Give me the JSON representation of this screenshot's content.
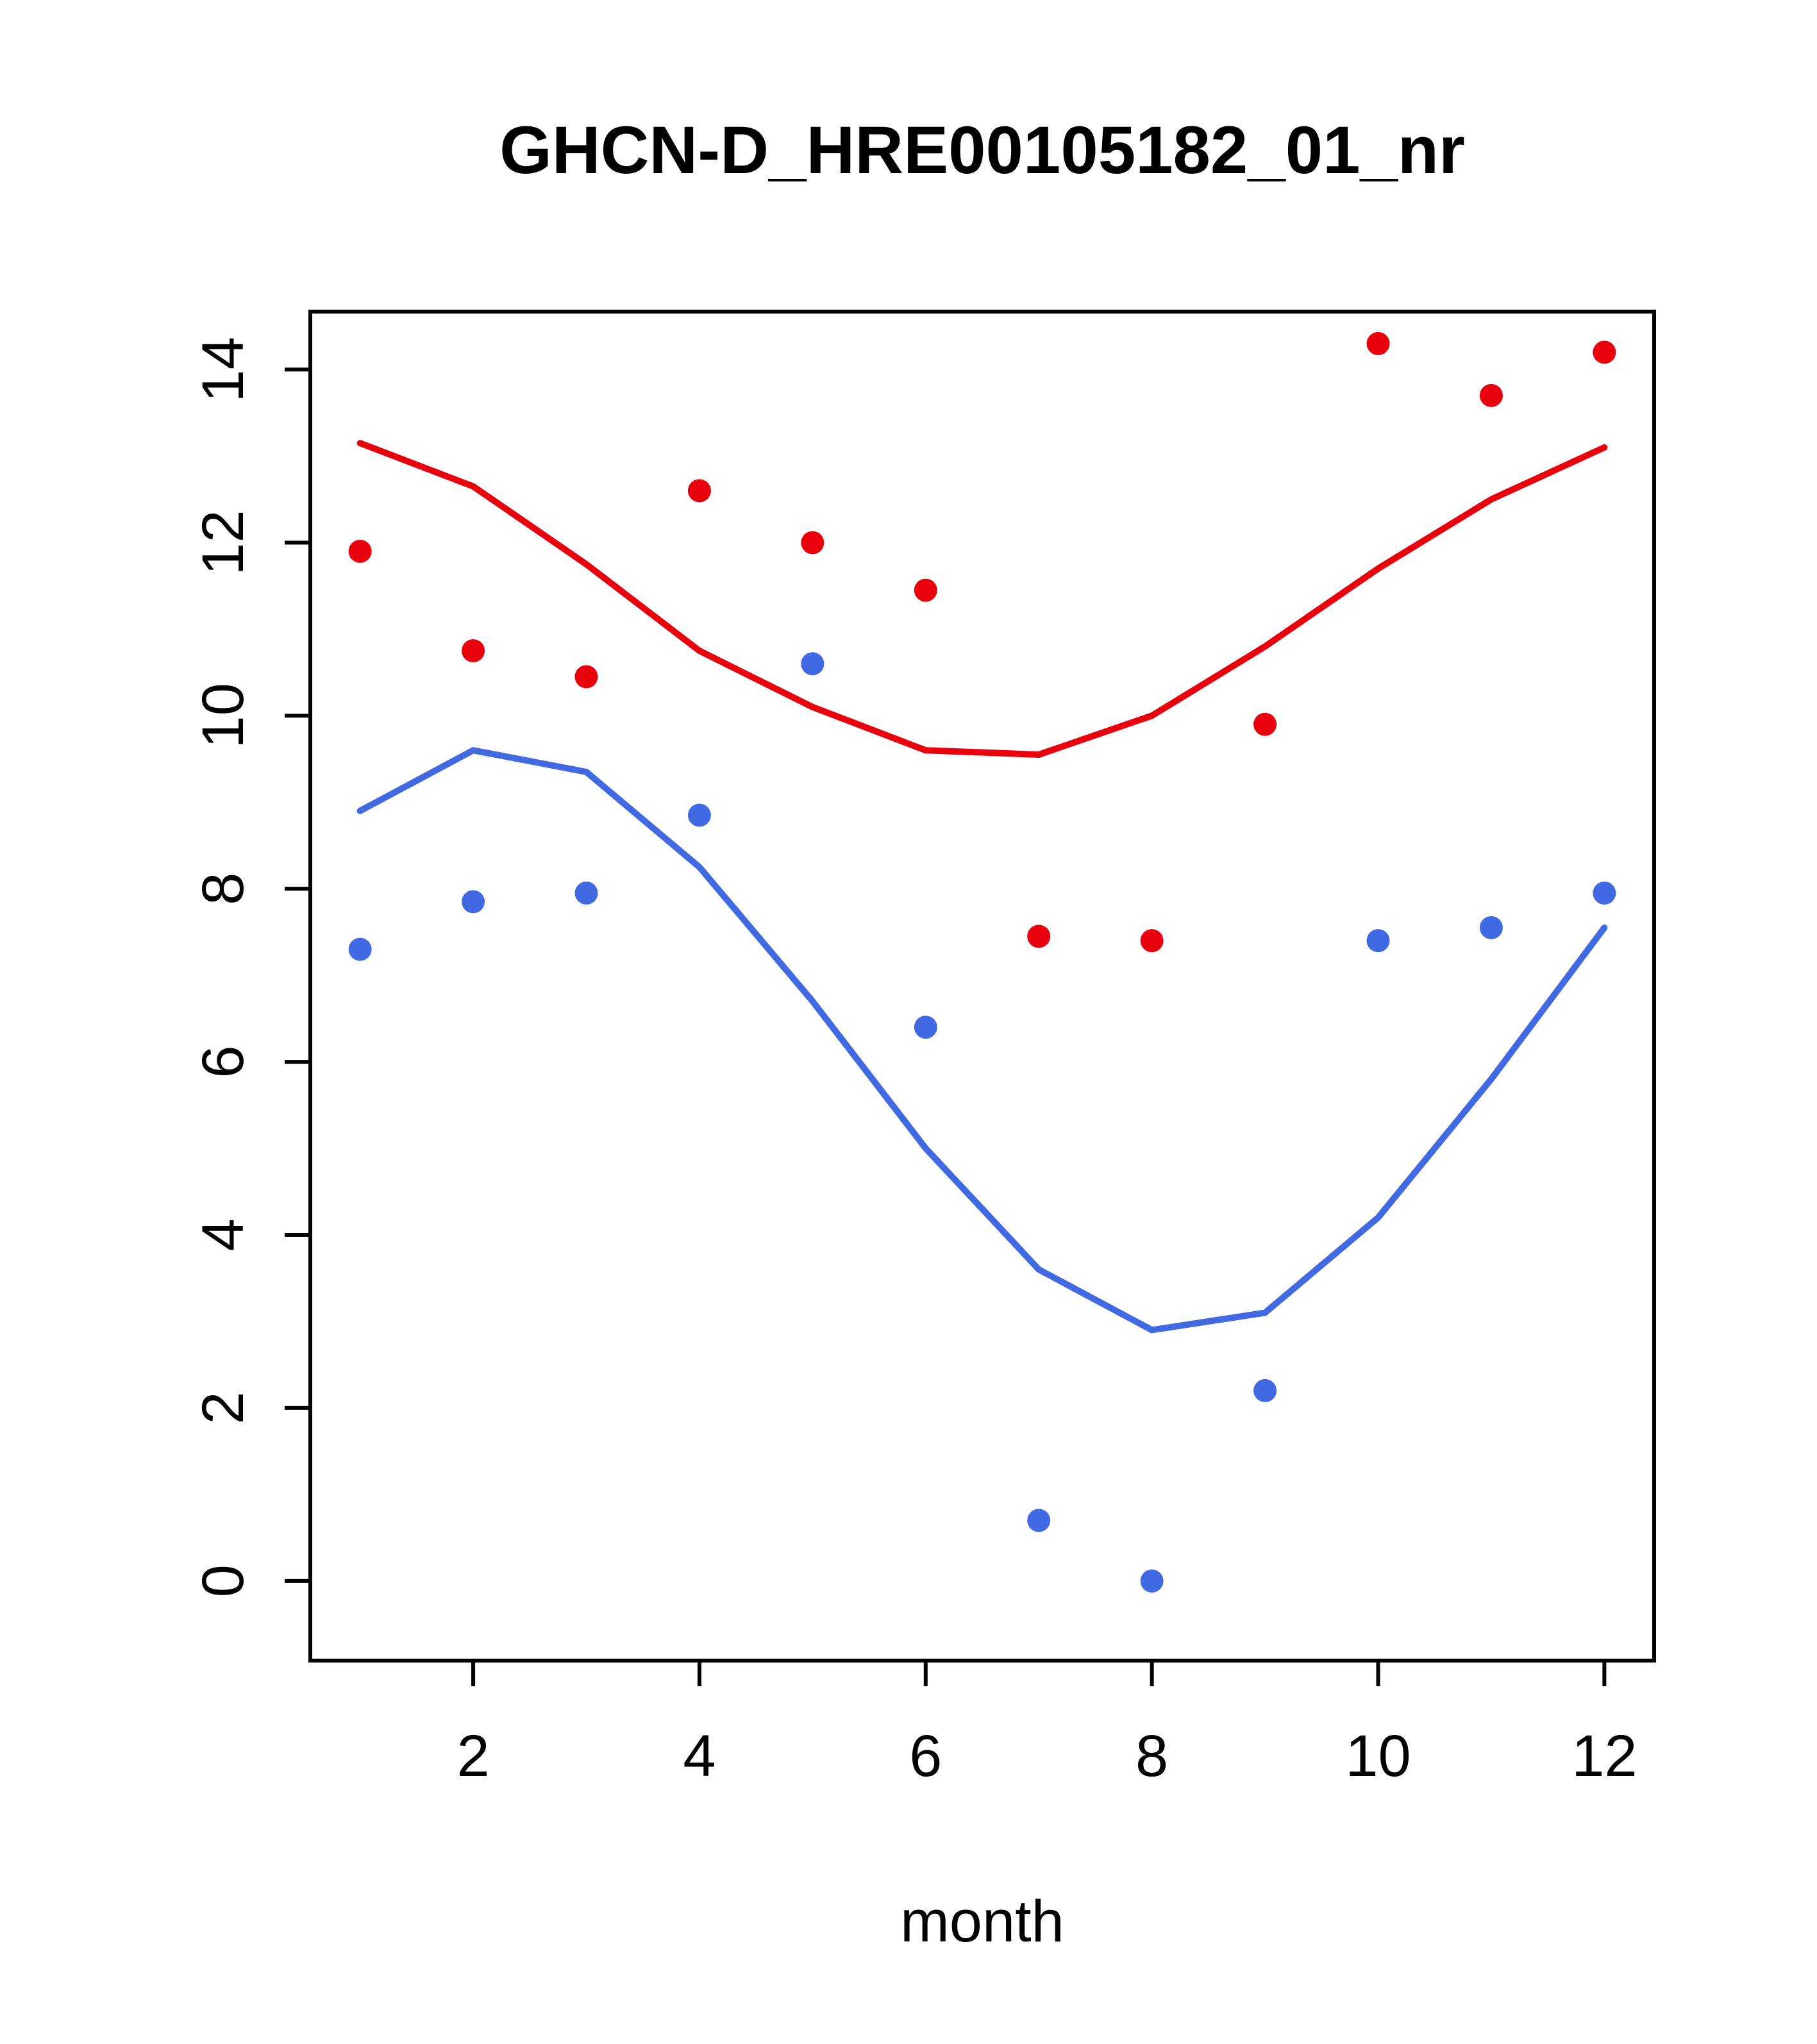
{
  "chart_data": {
    "type": "scatter",
    "title": "GHCN-D_HRE00105182_01_nr",
    "xlabel": "month",
    "ylabel": "",
    "x": [
      1,
      2,
      3,
      4,
      5,
      6,
      7,
      8,
      9,
      10,
      11,
      12
    ],
    "xticks": [
      2,
      4,
      6,
      8,
      10,
      12
    ],
    "yticks": [
      0,
      2,
      4,
      6,
      8,
      10,
      12,
      14
    ],
    "xlim": [
      0.56,
      12.44
    ],
    "ylim": [
      -0.92,
      14.67
    ],
    "grid": false,
    "legend": "none",
    "series": [
      {
        "name": "red-points",
        "type": "scatter",
        "color": "#e8000d",
        "values": [
          11.9,
          10.75,
          10.45,
          12.6,
          12.0,
          11.45,
          7.45,
          7.4,
          9.9,
          14.3,
          13.7,
          14.2
        ]
      },
      {
        "name": "red-line",
        "type": "line",
        "color": "#e8000d",
        "values": [
          13.15,
          12.65,
          11.75,
          10.75,
          10.1,
          9.6,
          9.55,
          10.0,
          10.8,
          11.7,
          12.5,
          13.1
        ]
      },
      {
        "name": "blue-points",
        "type": "scatter",
        "color": "#4169e1",
        "values": [
          7.3,
          7.85,
          7.95,
          8.85,
          10.6,
          6.4,
          0.7,
          0.0,
          2.2,
          7.4,
          7.55,
          7.95
        ]
      },
      {
        "name": "blue-line",
        "type": "line",
        "color": "#4169e1",
        "values": [
          8.9,
          9.6,
          9.35,
          8.25,
          6.7,
          5.0,
          3.6,
          2.9,
          3.1,
          4.2,
          5.8,
          7.55
        ]
      }
    ]
  }
}
